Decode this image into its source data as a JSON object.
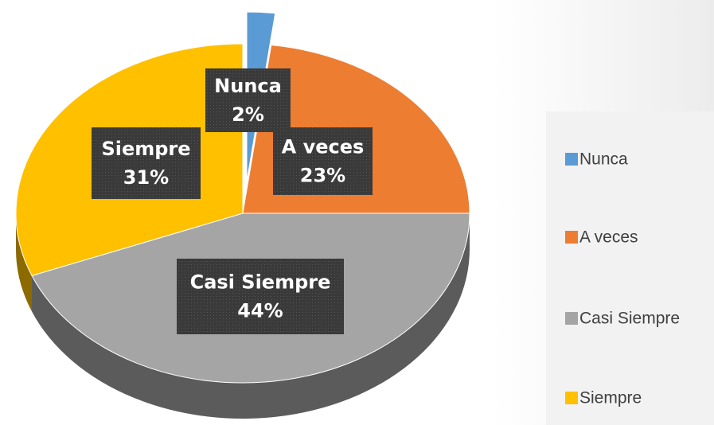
{
  "chart_data": {
    "type": "pie",
    "categories": [
      "Nunca",
      "A veces",
      "Casi Siempre",
      "Siempre"
    ],
    "values": [
      2,
      23,
      44,
      31
    ],
    "value_labels": [
      "2%",
      "23%",
      "44%",
      "31%"
    ],
    "colors": [
      "#5b9bd5",
      "#ed7d31",
      "#a5a5a5",
      "#ffc000"
    ],
    "legend": "right"
  }
}
